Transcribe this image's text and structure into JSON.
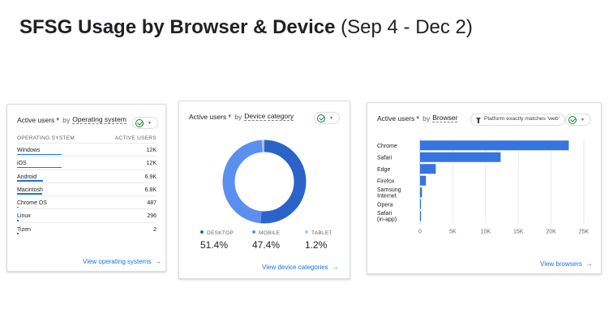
{
  "title": {
    "main": "SFSG Usage by Browser & Device",
    "range": "(Sep 4 - Dec 2)"
  },
  "os_card": {
    "metric": "Active users",
    "by": "by",
    "dimension": "Operating system",
    "col_name": "OPERATING SYSTEM",
    "col_value": "ACTIVE USERS",
    "rows": [
      {
        "name": "Windows",
        "value": "12K",
        "share": 0.322
      },
      {
        "name": "iOS",
        "value": "12K",
        "share": 0.318
      },
      {
        "name": "Android",
        "value": "6.9K",
        "share": 0.185
      },
      {
        "name": "Macintosh",
        "value": "6.8K",
        "share": 0.182
      },
      {
        "name": "Chrome OS",
        "value": "487",
        "share": 0.013
      },
      {
        "name": "Linux",
        "value": "296",
        "share": 0.008
      },
      {
        "name": "Tizen",
        "value": "2",
        "share": 0.0001
      }
    ],
    "link": "View operating systems"
  },
  "device_card": {
    "metric": "Active users",
    "by": "by",
    "dimension": "Device category",
    "link": "View device categories",
    "colors": {
      "desktop": "#2b63c9",
      "mobile": "#5a8ff0",
      "tablet": "#a9c4f5"
    },
    "segments": [
      {
        "key": "desktop",
        "label": "DESKTOP",
        "pct": "51.4%",
        "value": 51.4
      },
      {
        "key": "mobile",
        "label": "MOBILE",
        "pct": "47.4%",
        "value": 47.4
      },
      {
        "key": "tablet",
        "label": "TABLET",
        "pct": "1.2%",
        "value": 1.2
      }
    ]
  },
  "browser_card": {
    "metric": "Active users",
    "by": "by",
    "dimension": "Browser",
    "filter": "Platform exactly matches 'web'",
    "link": "View browsers",
    "chart_data": {
      "type": "bar",
      "orientation": "horizontal",
      "categories": [
        "Chrome",
        "Safari",
        "Edge",
        "Firefox",
        "Samsung Internet",
        "Opera",
        "Safari (in-app)"
      ],
      "values": [
        22700,
        12300,
        2400,
        900,
        300,
        80,
        40
      ],
      "xlim": [
        0,
        25000
      ],
      "ticks": [
        0,
        5000,
        10000,
        15000,
        20000,
        25000
      ],
      "tick_labels": [
        "0",
        "5K",
        "10K",
        "15K",
        "20K",
        "25K"
      ],
      "bar_color": "#3674e0",
      "grid": true
    }
  }
}
